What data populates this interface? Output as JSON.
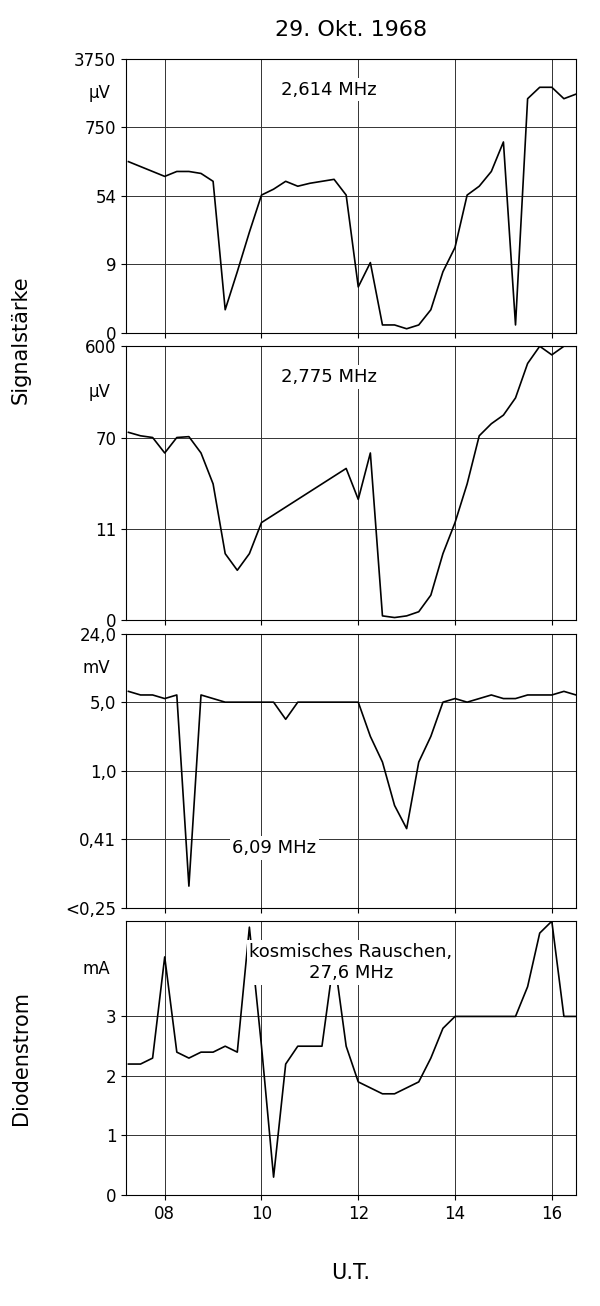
{
  "title": "29. Okt. 1968",
  "xlabel": "U.T.",
  "chart_data": [
    {
      "type": "line",
      "annotation": "2,614 MHz",
      "ylabel": "Signalstärke",
      "unit": "µV",
      "tick_labels": "y",
      "grid": true,
      "color": "#000000",
      "x": [
        7.25,
        7.5,
        7.75,
        8.0,
        8.25,
        8.5,
        8.75,
        9.0,
        9.25,
        9.5,
        9.75,
        10.0,
        10.25,
        10.5,
        10.75,
        11.0,
        11.25,
        11.5,
        11.75,
        12.0,
        12.25,
        12.5,
        12.75,
        13.0,
        13.25,
        13.5,
        13.75,
        14.0,
        14.25,
        14.5,
        14.75,
        15.0,
        15.25,
        15.5,
        15.75,
        16.0,
        16.25,
        16.5
      ],
      "values": [
        400,
        350,
        300,
        250,
        300,
        300,
        280,
        200,
        3,
        8,
        30,
        60,
        120,
        200,
        150,
        180,
        200,
        220,
        60,
        6,
        10,
        1,
        1,
        0.5,
        1,
        3,
        8,
        20,
        60,
        150,
        300,
        600,
        1,
        2000,
        2500,
        2500,
        2000,
        2200
      ],
      "xlim": [
        7.2,
        16.5
      ],
      "xticks": [
        {
          "value": 8,
          "label": "08"
        },
        10,
        12,
        14,
        16
      ],
      "ylim": [
        0,
        3750
      ],
      "yticks": [
        0,
        9,
        54,
        750,
        3750
      ]
    },
    {
      "type": "line",
      "annotation": "2,775 MHz",
      "unit": "µV",
      "tick_labels": "y",
      "grid": true,
      "color": "#000000",
      "x": [
        7.25,
        7.5,
        7.75,
        8.0,
        8.25,
        8.5,
        8.75,
        9.0,
        9.25,
        9.5,
        9.75,
        10.0,
        10.25,
        10.5,
        10.75,
        11.0,
        11.25,
        11.5,
        11.75,
        12.0,
        12.25,
        12.5,
        12.75,
        13.0,
        13.25,
        13.5,
        13.75,
        14.0,
        14.25,
        14.5,
        14.75,
        15.0,
        15.25,
        15.5,
        15.75,
        16.0,
        16.25,
        16.5
      ],
      "values": [
        100,
        80,
        70,
        60,
        70,
        75,
        60,
        40,
        8,
        6,
        8,
        15,
        20,
        25,
        30,
        35,
        40,
        45,
        50,
        30,
        60,
        0.5,
        0.3,
        0.5,
        1,
        3,
        8,
        15,
        40,
        80,
        150,
        200,
        300,
        500,
        600,
        550,
        600,
        600
      ],
      "xlim": [
        7.2,
        16.5
      ],
      "xticks": [
        {
          "value": 8,
          "label": "08"
        },
        10,
        12,
        14,
        16
      ],
      "ylim": [
        0,
        600
      ],
      "yticks": [
        0,
        11,
        70,
        600
      ]
    },
    {
      "type": "line",
      "annotation": "6,09 MHz",
      "unit": "mV",
      "tick_labels": "y",
      "grid": true,
      "color": "#000000",
      "x": [
        7.25,
        7.5,
        7.75,
        8.0,
        8.25,
        8.5,
        8.75,
        9.0,
        9.25,
        9.5,
        9.75,
        10.0,
        10.25,
        10.5,
        10.75,
        11.0,
        11.25,
        11.5,
        11.75,
        12.0,
        12.25,
        12.5,
        12.75,
        13.0,
        13.25,
        13.5,
        13.75,
        14.0,
        14.25,
        14.5,
        14.75,
        15.0,
        15.25,
        15.5,
        15.75,
        16.0,
        16.25,
        16.5
      ],
      "values": [
        8,
        7,
        7,
        6,
        7,
        0.3,
        7,
        6,
        5,
        5,
        5,
        5,
        5,
        4,
        5,
        5,
        5,
        5,
        5,
        5,
        3,
        1.5,
        0.7,
        0.5,
        1.5,
        3,
        5,
        6,
        5,
        6,
        7,
        6,
        6,
        7,
        7,
        7,
        8,
        7
      ],
      "xlim": [
        7.2,
        16.5
      ],
      "xticks": [
        {
          "value": 8,
          "label": "08"
        },
        10,
        12,
        14,
        16
      ],
      "ylim": [
        0.25,
        24.0
      ],
      "yticks": [
        {
          "value": 0.25,
          "label": "<0,25"
        },
        {
          "value": 0.41,
          "label": "0,41"
        },
        {
          "value": 1.0,
          "label": "1,0"
        },
        {
          "value": 5.0,
          "label": "5,0"
        },
        {
          "value": 24.0,
          "label": "24,0"
        }
      ]
    },
    {
      "type": "line",
      "annotation": "kosmisches Rauschen,\n27,6 MHz",
      "ylabel": "Diodenstrom",
      "unit": "mA",
      "grid": true,
      "color": "#000000",
      "x": [
        7.25,
        7.5,
        7.75,
        8.0,
        8.25,
        8.5,
        8.75,
        9.0,
        9.25,
        9.5,
        9.75,
        10.0,
        10.25,
        10.5,
        10.75,
        11.0,
        11.25,
        11.5,
        11.75,
        12.0,
        12.25,
        12.5,
        12.75,
        13.0,
        13.25,
        13.5,
        13.75,
        14.0,
        14.25,
        14.5,
        14.75,
        15.0,
        15.25,
        15.5,
        15.75,
        16.0,
        16.25,
        16.5
      ],
      "values": [
        2.2,
        2.2,
        2.3,
        4.0,
        2.4,
        2.3,
        2.4,
        2.4,
        2.5,
        2.4,
        4.5,
        2.5,
        0.3,
        2.2,
        2.5,
        2.5,
        2.5,
        4.0,
        2.5,
        1.9,
        1.8,
        1.7,
        1.7,
        1.8,
        1.9,
        2.3,
        2.8,
        3.0,
        3.0,
        3.0,
        3.0,
        3.0,
        3.0,
        3.5,
        4.4,
        4.6,
        3.0,
        3.0
      ],
      "xlim": [
        7.2,
        16.5
      ],
      "xticks": [
        {
          "value": 8,
          "label": "08"
        },
        10,
        12,
        14,
        16
      ],
      "ylim": [
        0,
        4.6
      ],
      "yticks": [
        0,
        1,
        2,
        3
      ]
    }
  ]
}
